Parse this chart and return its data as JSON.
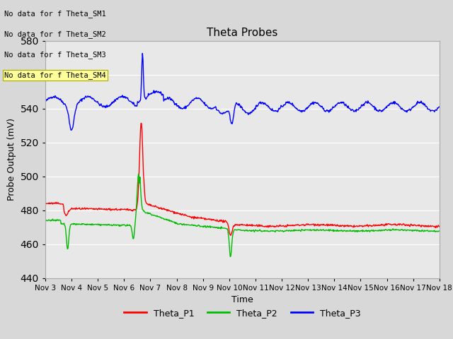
{
  "title": "Theta Probes",
  "xlabel": "Time",
  "ylabel": "Probe Output (mV)",
  "ylim": [
    440,
    580
  ],
  "yticks": [
    440,
    460,
    480,
    500,
    520,
    540,
    560,
    580
  ],
  "xtick_labels": [
    "Nov 3",
    "Nov 4",
    "Nov 5",
    "Nov 6",
    "Nov 7",
    "Nov 8",
    "Nov 9",
    "Nov 10",
    "Nov 11",
    "Nov 12",
    "Nov 13",
    "Nov 14",
    "Nov 15",
    "Nov 16",
    "Nov 17",
    "Nov 18"
  ],
  "no_data_labels": [
    "No data for f Theta_SM1",
    "No data for f Theta_SM2",
    "No data for f Theta_SM3",
    "No data for f Theta_SM4"
  ],
  "legend_entries": [
    "Theta_P1",
    "Theta_P2",
    "Theta_P3"
  ],
  "legend_colors": [
    "#ff0000",
    "#00bb00",
    "#0000ff"
  ],
  "colors": {
    "P1": "#ff0000",
    "P2": "#00bb00",
    "P3": "#0000ff"
  },
  "fig_bg": "#d8d8d8",
  "plot_bg": "#e8e8e8",
  "grid_color": "#ffffff"
}
